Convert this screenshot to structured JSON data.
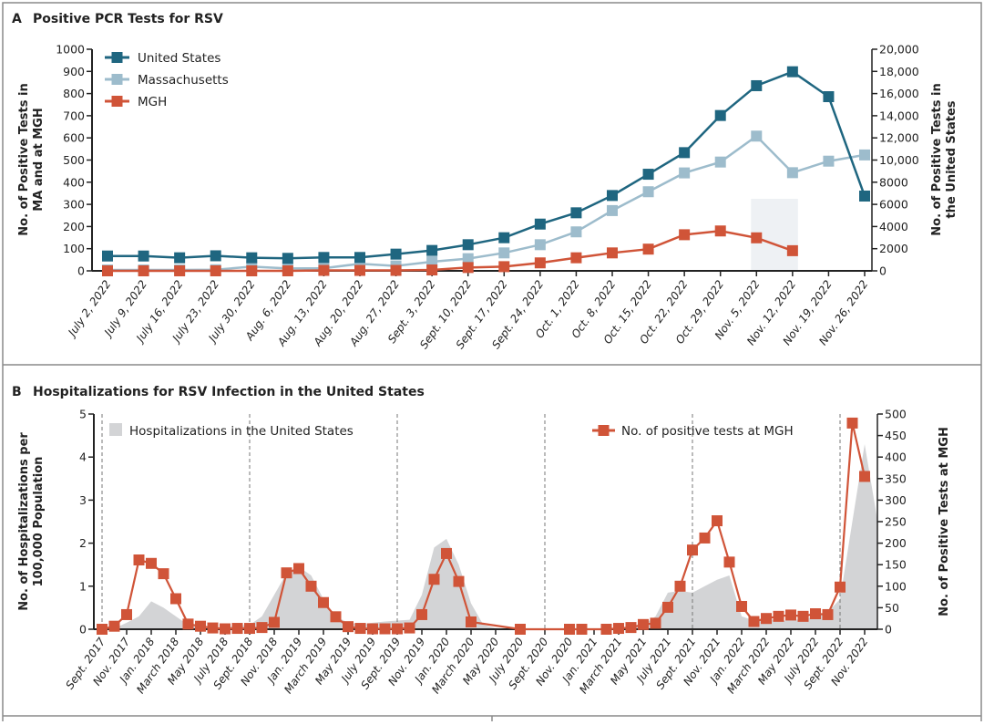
{
  "chart_data": [
    {
      "panel": "A",
      "type": "line",
      "title": "Positive PCR Tests for RSV",
      "ylabel_left": [
        "No. of Positive Tests in",
        "MA and at MGH"
      ],
      "ylabel_right": [
        "No. of Positive Tests in",
        "the United States"
      ],
      "ylim_left": [
        0,
        1000
      ],
      "ylim_right": [
        0,
        20000
      ],
      "yticks_left": [
        "0",
        "100",
        "200",
        "300",
        "400",
        "500",
        "600",
        "700",
        "800",
        "900",
        "1000"
      ],
      "yticks_right": [
        "0",
        "2000",
        "4000",
        "6000",
        "8000",
        "10,000",
        "12,000",
        "14,000",
        "16,000",
        "18,000",
        "20,000"
      ],
      "categories": [
        "July 2, 2022",
        "July 9, 2022",
        "July 16, 2022",
        "July 23, 2022",
        "July 30, 2022",
        "Aug. 6, 2022",
        "Aug. 13, 2022",
        "Aug. 20, 2022",
        "Aug. 27, 2022",
        "Sept. 3, 2022",
        "Sept. 10, 2022",
        "Sept. 17, 2022",
        "Sept. 24, 2022",
        "Oct. 1, 2022",
        "Oct. 8, 2022",
        "Oct. 15, 2022",
        "Oct. 22, 2022",
        "Oct. 29, 2022",
        "Nov. 5, 2022",
        "Nov. 12, 2022",
        "Nov. 19, 2022",
        "Nov. 26, 2022"
      ],
      "series": [
        {
          "name": "United States",
          "axis": "right",
          "color": "#1f6680",
          "values": [
            1340,
            1340,
            1180,
            1360,
            1180,
            1130,
            1210,
            1210,
            1510,
            1840,
            2360,
            2990,
            4220,
            5240,
            6800,
            8720,
            10670,
            14020,
            16710,
            17970,
            15720,
            6750
          ]
        },
        {
          "name": "Massachusetts",
          "axis": "left",
          "color": "#9dbccc",
          "values": [
            4,
            4,
            4,
            5,
            19,
            11,
            12,
            32,
            22,
            41,
            55,
            81,
            118,
            176,
            272,
            357,
            442,
            491,
            608,
            443,
            495,
            523
          ]
        },
        {
          "name": "MGH",
          "axis": "left",
          "color": "#d05438",
          "values": [
            0,
            0,
            0,
            0,
            0,
            0,
            2,
            2,
            2,
            4,
            15,
            19,
            36,
            59,
            81,
            98,
            163,
            180,
            149,
            91,
            null,
            null
          ]
        }
      ],
      "shaded_region": {
        "from": "Nov. 5, 2022",
        "to": "Nov. 12, 2022",
        "color": "#eef1f4"
      },
      "legend": "top-left"
    },
    {
      "panel": "B",
      "type": "area+line",
      "title": "Hospitalizations for RSV Infection in the United States",
      "ylabel_left": [
        "No. of Hospitalizations per",
        "100,000 Population"
      ],
      "ylabel_right": [
        "No. of Positive Tests at MGH"
      ],
      "ylim_left": [
        0,
        5
      ],
      "ylim_right": [
        0,
        500
      ],
      "yticks_left": [
        "0",
        "1",
        "2",
        "3",
        "4",
        "5"
      ],
      "yticks_right": [
        "0",
        "50",
        "100",
        "150",
        "200",
        "250",
        "300",
        "350",
        "400",
        "450",
        "500"
      ],
      "xticks": [
        "Sept. 2017",
        "Nov. 2017",
        "Jan. 2018",
        "March 2018",
        "May 2018",
        "July 2018",
        "Sept. 2018",
        "Nov. 2018",
        "Jan. 2019",
        "March 2019",
        "May 2019",
        "July 2019",
        "Sept. 2019",
        "Nov. 2019",
        "Jan. 2020",
        "March 2020",
        "May 2020",
        "July 2020",
        "Sept. 2020",
        "Nov. 2020",
        "Jan. 2021",
        "March 2021",
        "May 2021",
        "July 2021",
        "Sept. 2021",
        "Nov. 2021",
        "Jan. 2022",
        "March 2022",
        "May 2022",
        "July 2022",
        "Sept. 2022",
        "Nov. 2022"
      ],
      "season_dividers": [
        "Sept. 2017",
        "Sept. 2018",
        "Sept. 2019",
        "Sept. 2020",
        "Sept. 2021",
        "Sept. 2022"
      ],
      "area_series": {
        "name": "Hospitalizations in the United States",
        "axis": "left",
        "color": "#d3d4d6",
        "points": [
          [
            "2017-09",
            0
          ],
          [
            "2017-10",
            0.02
          ],
          [
            "2017-11",
            0.15
          ],
          [
            "2017-12",
            0.3
          ],
          [
            "2018-01",
            0.65
          ],
          [
            "2018-02",
            0.5
          ],
          [
            "2018-03",
            0.3
          ],
          [
            "2018-04",
            0.1
          ],
          [
            "2018-05",
            0.05
          ],
          [
            "2018-06",
            0.04
          ],
          [
            "2018-07",
            0.05
          ],
          [
            "2018-08",
            0.08
          ],
          [
            "2018-09",
            0.1
          ],
          [
            "2018-10",
            0.3
          ],
          [
            "2018-11",
            0.8
          ],
          [
            "2018-12",
            1.3
          ],
          [
            "2019-01",
            1.45
          ],
          [
            "2019-02",
            1.25
          ],
          [
            "2019-03",
            0.7
          ],
          [
            "2019-04",
            0.3
          ],
          [
            "2019-05",
            0.15
          ],
          [
            "2019-06",
            0.12
          ],
          [
            "2019-07",
            0.15
          ],
          [
            "2019-08",
            0.18
          ],
          [
            "2019-09",
            0.2
          ],
          [
            "2019-10",
            0.22
          ],
          [
            "2019-11",
            0.8
          ],
          [
            "2019-12",
            1.9
          ],
          [
            "2020-01",
            2.1
          ],
          [
            "2020-02",
            1.5
          ],
          [
            "2020-03",
            0.6
          ],
          [
            "2020-04",
            0.1
          ],
          [
            "2020-05",
            0.03
          ],
          [
            "2020-06",
            0
          ],
          [
            "2021-04",
            0
          ],
          [
            "2021-05",
            0.1
          ],
          [
            "2021-06",
            0.3
          ],
          [
            "2021-07",
            0.85
          ],
          [
            "2021-08",
            0.89
          ],
          [
            "2021-09",
            0.85
          ],
          [
            "2021-10",
            1.0
          ],
          [
            "2021-11",
            1.15
          ],
          [
            "2021-12",
            1.25
          ],
          [
            "2022-01",
            0.3
          ],
          [
            "2022-02",
            0.2
          ],
          [
            "2022-03",
            0.25
          ],
          [
            "2022-04",
            0.2
          ],
          [
            "2022-05",
            0.2
          ],
          [
            "2022-06",
            0.25
          ],
          [
            "2022-07",
            0.3
          ],
          [
            "2022-08",
            0.4
          ],
          [
            "2022-09",
            0.7
          ],
          [
            "2022-10",
            2.5
          ],
          [
            "2022-11",
            4.3
          ],
          [
            "2022-12",
            2.6
          ]
        ]
      },
      "line_series": {
        "name": "No. of positive tests at MGH",
        "axis": "right",
        "color": "#d05438",
        "points": [
          [
            "2017-09",
            0
          ],
          [
            "2017-10",
            7
          ],
          [
            "2017-11",
            34
          ],
          [
            "2017-12",
            161
          ],
          [
            "2018-01",
            153
          ],
          [
            "2018-02",
            129
          ],
          [
            "2018-03",
            71
          ],
          [
            "2018-04",
            12
          ],
          [
            "2018-05",
            7
          ],
          [
            "2018-06",
            3
          ],
          [
            "2018-07",
            1
          ],
          [
            "2018-08",
            2
          ],
          [
            "2018-09",
            2
          ],
          [
            "2018-10",
            4
          ],
          [
            "2018-11",
            16
          ],
          [
            "2018-12",
            131
          ],
          [
            "2019-01",
            141
          ],
          [
            "2019-02",
            100
          ],
          [
            "2019-03",
            62
          ],
          [
            "2019-04",
            29
          ],
          [
            "2019-05",
            6
          ],
          [
            "2019-06",
            2
          ],
          [
            "2019-07",
            1
          ],
          [
            "2019-08",
            1
          ],
          [
            "2019-09",
            1
          ],
          [
            "2019-10",
            3
          ],
          [
            "2019-11",
            34
          ],
          [
            "2019-12",
            116
          ],
          [
            "2020-01",
            176
          ],
          [
            "2020-02",
            111
          ],
          [
            "2020-03",
            17
          ],
          [
            "2020-07",
            0
          ],
          [
            "2020-11",
            0
          ],
          [
            "2020-12",
            0
          ],
          [
            "2021-02",
            0
          ],
          [
            "2021-03",
            2
          ],
          [
            "2021-04",
            4
          ],
          [
            "2021-05",
            11
          ],
          [
            "2021-06",
            14
          ],
          [
            "2021-07",
            51
          ],
          [
            "2021-08",
            100
          ],
          [
            "2021-09",
            184
          ],
          [
            "2021-10",
            212
          ],
          [
            "2021-11",
            252
          ],
          [
            "2021-12",
            156
          ],
          [
            "2022-01",
            53
          ],
          [
            "2022-02",
            18
          ],
          [
            "2022-03",
            25
          ],
          [
            "2022-04",
            30
          ],
          [
            "2022-05",
            33
          ],
          [
            "2022-06",
            30
          ],
          [
            "2022-07",
            36
          ],
          [
            "2022-08",
            34
          ],
          [
            "2022-09",
            98
          ],
          [
            "2022-10",
            479
          ],
          [
            "2022-11",
            355
          ]
        ]
      },
      "legend": "top"
    }
  ],
  "panels": {
    "a": {
      "letter": "A",
      "title": "Positive PCR Tests for RSV"
    },
    "b": {
      "letter": "B",
      "title": "Hospitalizations for RSV Infection in the United States"
    }
  }
}
